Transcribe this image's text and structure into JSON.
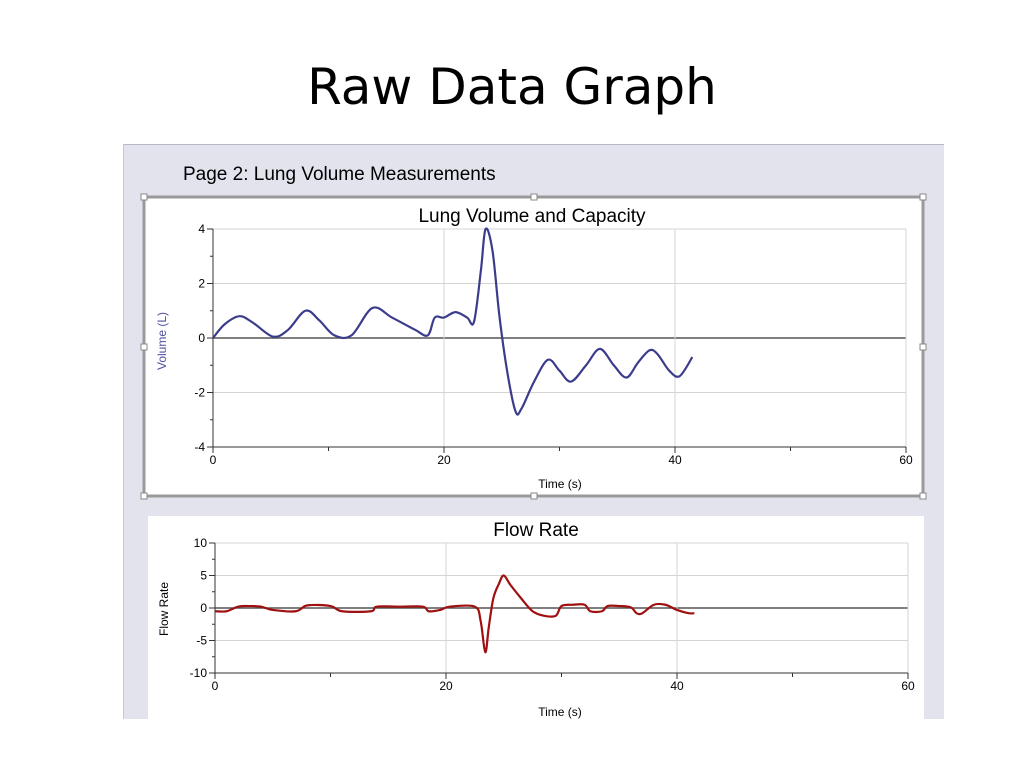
{
  "slide_title": "Raw Data Graph",
  "panel": {
    "page_label": "Page 2: Lung Volume Measurements"
  },
  "colors": {
    "volume_series": "#3c3c8c",
    "flow_series": "#a01010",
    "volume_axis_label": "#5050a0"
  },
  "chart_data": [
    {
      "type": "line",
      "title": "Lung Volume and Capacity",
      "xlabel": "Time (s)",
      "ylabel": "Volume (L)",
      "xlim": [
        0,
        60
      ],
      "ylim": [
        -4,
        4
      ],
      "x_ticks": [
        "0",
        "20",
        "40",
        "60"
      ],
      "y_ticks": [
        "4",
        "2",
        "0",
        "-2",
        "-4"
      ],
      "grid": true,
      "series": [
        {
          "points": [
            [
              0,
              0
            ],
            [
              1,
              0.5
            ],
            [
              2.3,
              0.8
            ],
            [
              3.5,
              0.55
            ],
            [
              5.2,
              0.05
            ],
            [
              6.5,
              0.3
            ],
            [
              8,
              1.0
            ],
            [
              9.2,
              0.65
            ],
            [
              10.5,
              0.1
            ],
            [
              12,
              0.1
            ],
            [
              13.8,
              1.1
            ],
            [
              15.5,
              0.75
            ],
            [
              17.5,
              0.3
            ],
            [
              18.6,
              0.1
            ],
            [
              19.2,
              0.75
            ],
            [
              20,
              0.75
            ],
            [
              21,
              0.95
            ],
            [
              22,
              0.75
            ],
            [
              22.6,
              0.6
            ],
            [
              23.2,
              2.5
            ],
            [
              23.6,
              4.0
            ],
            [
              24.2,
              3.2
            ],
            [
              24.8,
              0.8
            ],
            [
              25.5,
              -1.3
            ],
            [
              26.2,
              -2.7
            ],
            [
              26.7,
              -2.6
            ],
            [
              27.8,
              -1.6
            ],
            [
              29,
              -0.8
            ],
            [
              30,
              -1.2
            ],
            [
              31,
              -1.6
            ],
            [
              32.3,
              -1.0
            ],
            [
              33.5,
              -0.4
            ],
            [
              34.7,
              -1.0
            ],
            [
              35.8,
              -1.45
            ],
            [
              36.8,
              -0.9
            ],
            [
              37.8,
              -0.45
            ],
            [
              38.5,
              -0.6
            ],
            [
              39.5,
              -1.2
            ],
            [
              40.4,
              -1.4
            ],
            [
              41.5,
              -0.7
            ]
          ]
        }
      ]
    },
    {
      "type": "line",
      "title": "Flow Rate",
      "xlabel": "Time (s)",
      "ylabel": "Flow Rate",
      "xlim": [
        0,
        60
      ],
      "ylim": [
        -10,
        10
      ],
      "x_ticks": [
        "0",
        "20",
        "40",
        "60"
      ],
      "y_ticks": [
        "10",
        "5",
        "0",
        "-5",
        "-10"
      ],
      "grid": true,
      "series": [
        {
          "points": [
            [
              0,
              -0.5
            ],
            [
              1,
              -0.5
            ],
            [
              2,
              0.2
            ],
            [
              3,
              0.3
            ],
            [
              4,
              0.2
            ],
            [
              5,
              -0.3
            ],
            [
              7,
              -0.5
            ],
            [
              8,
              0.4
            ],
            [
              10,
              0.3
            ],
            [
              11,
              -0.5
            ],
            [
              13.5,
              -0.5
            ],
            [
              14,
              0.2
            ],
            [
              16,
              0.2
            ],
            [
              18,
              0.2
            ],
            [
              18.5,
              -0.5
            ],
            [
              19.5,
              -0.3
            ],
            [
              20.3,
              0.2
            ],
            [
              22.5,
              0.2
            ],
            [
              23,
              -2
            ],
            [
              23.4,
              -6.8
            ],
            [
              23.7,
              -3
            ],
            [
              24.1,
              1.5
            ],
            [
              24.6,
              3.8
            ],
            [
              25,
              5
            ],
            [
              25.6,
              3.5
            ],
            [
              26.5,
              1.5
            ],
            [
              27.5,
              -0.5
            ],
            [
              28.5,
              -1.2
            ],
            [
              29.5,
              -1.2
            ],
            [
              30,
              0.3
            ],
            [
              31,
              0.5
            ],
            [
              32,
              0.5
            ],
            [
              32.5,
              -0.5
            ],
            [
              33.5,
              -0.5
            ],
            [
              34,
              0.3
            ],
            [
              35,
              0.3
            ],
            [
              36,
              0.1
            ],
            [
              36.5,
              -0.8
            ],
            [
              37,
              -0.8
            ],
            [
              38,
              0.5
            ],
            [
              39,
              0.5
            ],
            [
              40,
              -0.3
            ],
            [
              41,
              -0.8
            ],
            [
              41.5,
              -0.8
            ]
          ]
        }
      ]
    }
  ]
}
